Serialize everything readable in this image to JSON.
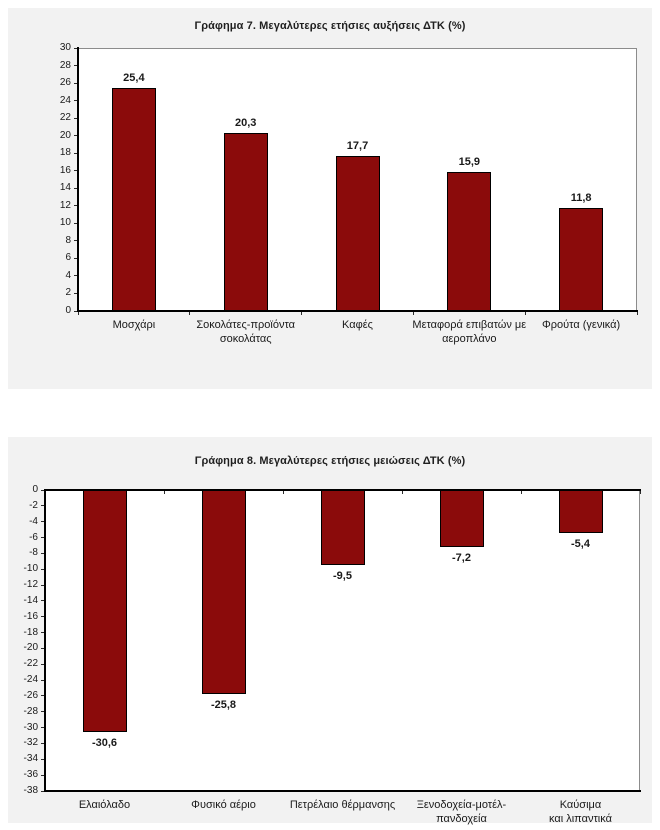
{
  "style": {
    "panel_background": "#f2f2f2",
    "plot_background": "#ffffff",
    "bar_color": "#8B0B0B",
    "bar_border_color": "#000000",
    "axis_color": "#000000",
    "text_color": "#1a1a1a"
  },
  "chart_data": [
    {
      "type": "bar",
      "title": "Γράφημα 7. Μεγαλύτερες ετήσιες αυξήσεις ΔΤΚ (%)",
      "categories": [
        "Μοσχάρι",
        "Σοκολάτες-προϊόντα\nσοκολάτας",
        "Καφές",
        "Μεταφορά επιβατών με\nαεροπλάνο",
        "Φρούτα (γενικά)"
      ],
      "values": [
        25.4,
        20.3,
        17.7,
        15.9,
        11.8
      ],
      "value_labels": [
        "25,4",
        "20,3",
        "17,7",
        "15,9",
        "11,8"
      ],
      "value_label_position": "above",
      "xlabel": "",
      "ylabel": "",
      "ylim": [
        0,
        30
      ],
      "yticks": [
        30,
        28,
        26,
        24,
        22,
        20,
        18,
        16,
        14,
        12,
        10,
        8,
        6,
        4,
        2,
        0
      ],
      "grid": false,
      "legend": false,
      "bar_color": "#8B0B0B"
    },
    {
      "type": "bar",
      "title": "Γράφημα 8. Μεγαλύτερες ετήσιες μειώσεις ΔΤΚ (%)",
      "categories": [
        "Ελαιόλαδο",
        "Φυσικό αέριο",
        "Πετρέλαιο θέρμανσης",
        "Ξενοδοχεία-μοτέλ-\nπανδοχεία",
        "Καύσιμα\nκαι λιπαντικά"
      ],
      "values": [
        -30.6,
        -25.8,
        -9.5,
        -7.2,
        -5.4
      ],
      "value_labels": [
        "-30,6",
        "-25,8",
        "-9,5",
        "-7,2",
        "-5,4"
      ],
      "value_label_position": "below",
      "xlabel": "",
      "ylabel": "",
      "ylim": [
        -38,
        0
      ],
      "yticks": [
        0,
        -2,
        -4,
        -6,
        -8,
        -10,
        -12,
        -14,
        -16,
        -18,
        -20,
        -22,
        -24,
        -26,
        -28,
        -30,
        -32,
        -34,
        -36,
        -38
      ],
      "grid": false,
      "legend": false,
      "bar_color": "#8B0B0B"
    }
  ]
}
